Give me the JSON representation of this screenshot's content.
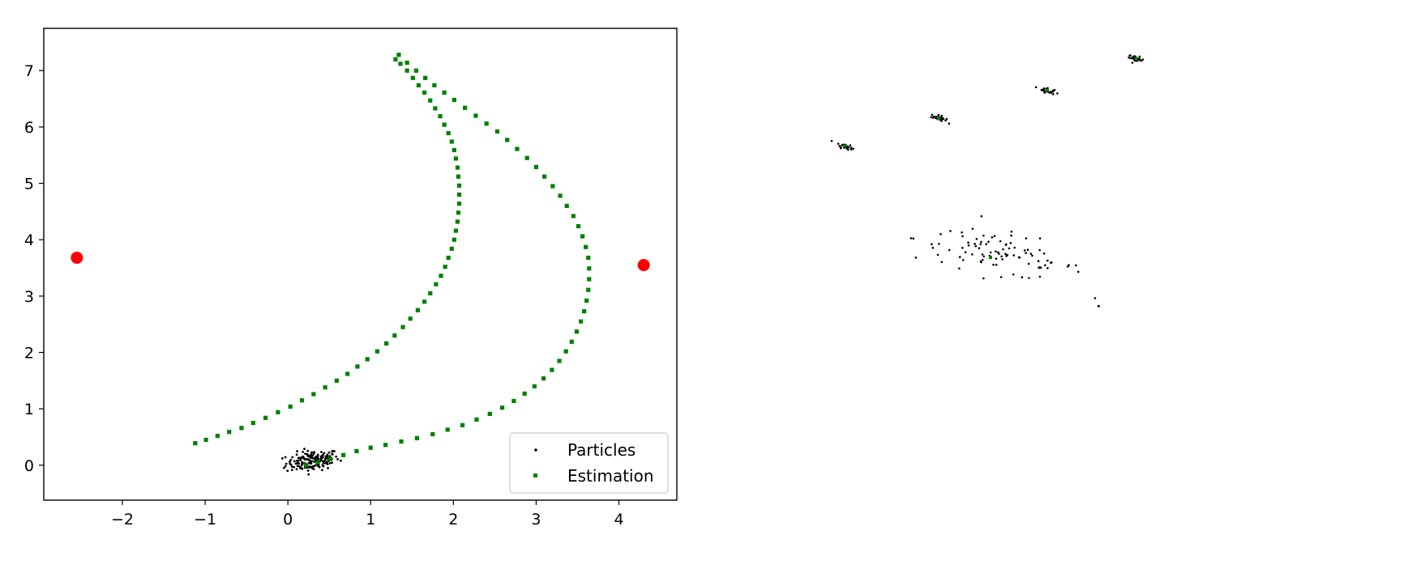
{
  "chart_data": [
    {
      "type": "scatter",
      "xlim": [
        -2.95,
        4.7
      ],
      "ylim": [
        -0.62,
        7.75
      ],
      "xticks": [
        -2,
        -1,
        0,
        1,
        2,
        3,
        4
      ],
      "yticks": [
        0,
        1,
        2,
        3,
        4,
        5,
        6,
        7
      ],
      "grid": false,
      "legend_position": "lower-right",
      "colors": {
        "particles": "#000000",
        "estimation": "#008000",
        "landmarks": "#ff0000"
      },
      "landmarks": [
        {
          "x": -2.55,
          "y": 3.68
        },
        {
          "x": 4.3,
          "y": 3.55
        }
      ],
      "series": [
        {
          "name": "Particles",
          "marker": "dot",
          "cluster": {
            "cx": 0.3,
            "cy": 0.08,
            "sx": 0.16,
            "sy": 0.09,
            "count": 160,
            "slope": 0.15
          }
        },
        {
          "name": "Estimation",
          "marker": "square",
          "points": [
            [
              -1.12,
              0.39
            ],
            [
              -0.99,
              0.45
            ],
            [
              -0.85,
              0.52
            ],
            [
              -0.71,
              0.59
            ],
            [
              -0.56,
              0.66
            ],
            [
              -0.42,
              0.75
            ],
            [
              -0.27,
              0.84
            ],
            [
              -0.12,
              0.94
            ],
            [
              0.03,
              1.04
            ],
            [
              0.17,
              1.15
            ],
            [
              0.31,
              1.26
            ],
            [
              0.45,
              1.38
            ],
            [
              0.59,
              1.5
            ],
            [
              0.72,
              1.62
            ],
            [
              0.84,
              1.75
            ],
            [
              0.96,
              1.88
            ],
            [
              1.08,
              2.02
            ],
            [
              1.19,
              2.16
            ],
            [
              1.29,
              2.3
            ],
            [
              1.39,
              2.45
            ],
            [
              1.48,
              2.6
            ],
            [
              1.57,
              2.75
            ],
            [
              1.65,
              2.9
            ],
            [
              1.72,
              3.05
            ],
            [
              1.79,
              3.21
            ],
            [
              1.85,
              3.36
            ],
            [
              1.9,
              3.52
            ],
            [
              1.94,
              3.68
            ],
            [
              1.98,
              3.84
            ],
            [
              2.01,
              4.0
            ],
            [
              2.03,
              4.16
            ],
            [
              2.05,
              4.32
            ],
            [
              2.06,
              4.48
            ],
            [
              2.07,
              4.64
            ],
            [
              2.07,
              4.8
            ],
            [
              2.07,
              4.96
            ],
            [
              2.06,
              5.12
            ],
            [
              2.05,
              5.28
            ],
            [
              2.03,
              5.44
            ],
            [
              2.01,
              5.59
            ],
            [
              1.98,
              5.74
            ],
            [
              1.94,
              5.89
            ],
            [
              1.89,
              6.04
            ],
            [
              1.84,
              6.19
            ],
            [
              1.78,
              6.33
            ],
            [
              1.72,
              6.47
            ],
            [
              1.65,
              6.61
            ],
            [
              1.58,
              6.74
            ],
            [
              1.51,
              6.87
            ],
            [
              1.44,
              7.0
            ],
            [
              1.36,
              7.12
            ],
            [
              1.3,
              7.2
            ],
            [
              1.34,
              7.28
            ],
            [
              1.44,
              7.14
            ],
            [
              1.55,
              7.0
            ],
            [
              1.66,
              6.87
            ],
            [
              1.77,
              6.74
            ],
            [
              1.89,
              6.61
            ],
            [
              2.01,
              6.48
            ],
            [
              2.14,
              6.34
            ],
            [
              2.27,
              6.2
            ],
            [
              2.4,
              6.06
            ],
            [
              2.53,
              5.92
            ],
            [
              2.65,
              5.77
            ],
            [
              2.77,
              5.61
            ],
            [
              2.89,
              5.45
            ],
            [
              3.0,
              5.29
            ],
            [
              3.1,
              5.12
            ],
            [
              3.2,
              4.95
            ],
            [
              3.29,
              4.78
            ],
            [
              3.37,
              4.6
            ],
            [
              3.45,
              4.42
            ],
            [
              3.51,
              4.24
            ],
            [
              3.56,
              4.06
            ],
            [
              3.6,
              3.87
            ],
            [
              3.63,
              3.68
            ],
            [
              3.64,
              3.49
            ],
            [
              3.64,
              3.3
            ],
            [
              3.63,
              3.11
            ],
            [
              3.61,
              2.92
            ],
            [
              3.58,
              2.73
            ],
            [
              3.54,
              2.55
            ],
            [
              3.49,
              2.37
            ],
            [
              3.43,
              2.19
            ],
            [
              3.36,
              2.02
            ],
            [
              3.28,
              1.85
            ],
            [
              3.19,
              1.69
            ],
            [
              3.09,
              1.54
            ],
            [
              2.98,
              1.4
            ],
            [
              2.86,
              1.27
            ],
            [
              2.73,
              1.14
            ],
            [
              2.59,
              1.02
            ],
            [
              2.44,
              0.91
            ],
            [
              2.28,
              0.81
            ],
            [
              2.11,
              0.71
            ],
            [
              1.93,
              0.63
            ],
            [
              1.75,
              0.55
            ],
            [
              1.56,
              0.48
            ],
            [
              1.37,
              0.42
            ],
            [
              1.18,
              0.36
            ],
            [
              1.0,
              0.31
            ],
            [
              0.83,
              0.25
            ],
            [
              0.67,
              0.18
            ],
            [
              0.51,
              0.11
            ],
            [
              0.36,
              0.05
            ],
            [
              0.22,
              0.0
            ]
          ]
        }
      ]
    },
    {
      "type": "scatter",
      "axes_visible": false,
      "colors": {
        "particles": "#000000",
        "estimation": "#008000"
      },
      "series": [
        {
          "name": "Particles",
          "clusters": [
            {
              "cx": 0.09,
              "cy": 0.72,
              "sx": 0.008,
              "sy": 0.004,
              "count": 30,
              "slope": -0.35
            },
            {
              "cx": 0.29,
              "cy": 0.8,
              "sx": 0.008,
              "sy": 0.004,
              "count": 30,
              "slope": -0.35
            },
            {
              "cx": 0.52,
              "cy": 0.88,
              "sx": 0.008,
              "sy": 0.004,
              "count": 30,
              "slope": -0.35
            },
            {
              "cx": 0.71,
              "cy": 0.97,
              "sx": 0.008,
              "sy": 0.004,
              "count": 30,
              "slope": -0.35
            },
            {
              "cx": 0.42,
              "cy": 0.41,
              "sx": 0.09,
              "sy": 0.03,
              "count": 95,
              "slope": -0.25
            }
          ],
          "outliers": [
            [
              0.63,
              0.26
            ]
          ]
        },
        {
          "name": "Estimation",
          "points": [
            [
              0.09,
              0.72
            ],
            [
              0.29,
              0.8
            ],
            [
              0.52,
              0.88
            ],
            [
              0.71,
              0.97
            ],
            [
              0.4,
              0.4
            ]
          ]
        }
      ]
    }
  ],
  "legend": {
    "items": [
      {
        "label": "Particles",
        "marker": "dot",
        "color": "#000000"
      },
      {
        "label": "Estimation",
        "marker": "square",
        "color": "#008000"
      }
    ]
  }
}
